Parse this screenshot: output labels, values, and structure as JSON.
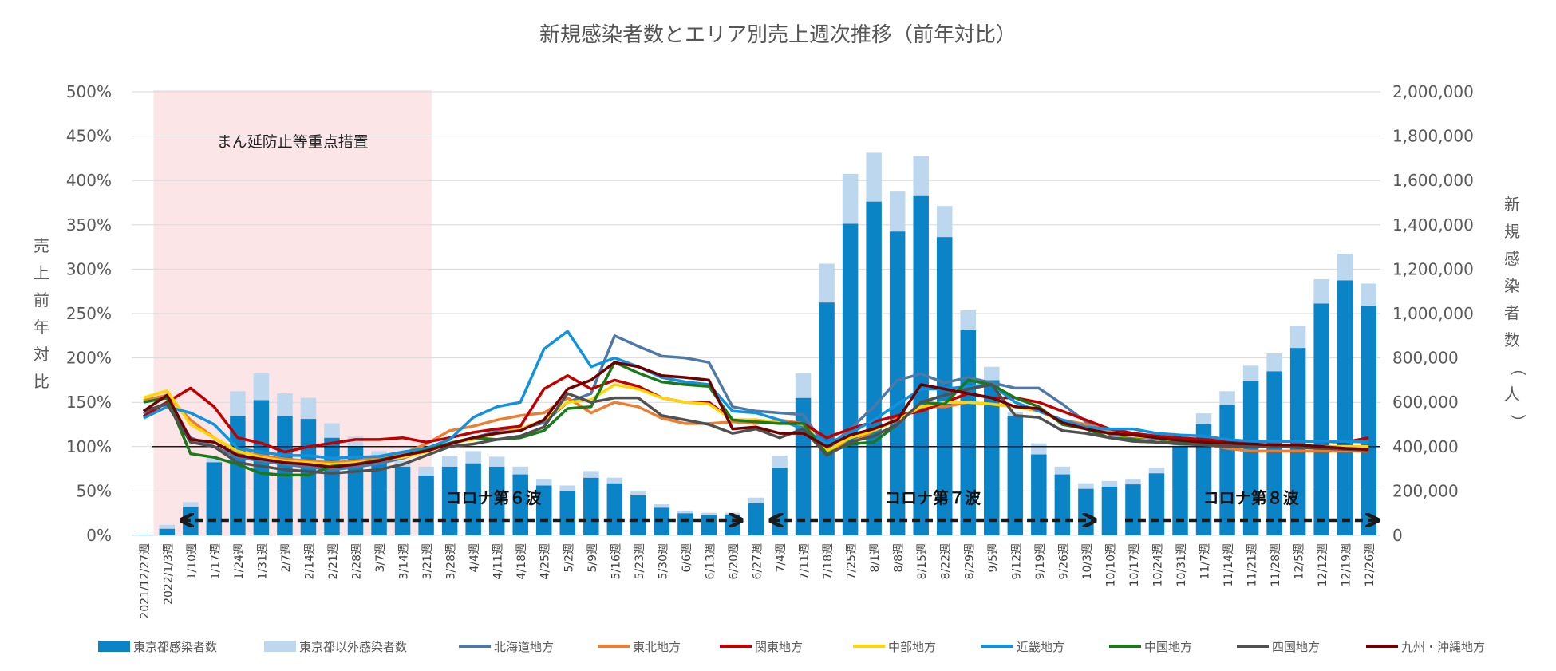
{
  "chart_data": {
    "type": "bar+line",
    "title": "新規感染者数とエリア別売上週次推移（前年対比）",
    "left_axis": {
      "label": "売上前年対比",
      "range": [
        0,
        500
      ],
      "ticks": [
        "0%",
        "50%",
        "100%",
        "150%",
        "200%",
        "250%",
        "300%",
        "350%",
        "400%",
        "450%",
        "500%"
      ]
    },
    "right_axis": {
      "label": "新規感染者数（人）",
      "range": [
        0,
        2000000
      ],
      "ticks": [
        "0",
        "200,000",
        "400,000",
        "600,000",
        "800,000",
        "1,000,000",
        "1,200,000",
        "1,400,000",
        "1,600,000",
        "1,800,000",
        "2,000,000"
      ]
    },
    "categories": [
      "2021/12/27週",
      "2022/1/3週",
      "1/10週",
      "1/17週",
      "1/24週",
      "1/31週",
      "2/7週",
      "2/14週",
      "2/21週",
      "2/28週",
      "3/7週",
      "3/14週",
      "3/21週",
      "3/28週",
      "4/4週",
      "4/11週",
      "4/18週",
      "4/25週",
      "5/2週",
      "5/9週",
      "5/16週",
      "5/23週",
      "5/30週",
      "6/6週",
      "6/13週",
      "6/20週",
      "6/27週",
      "7/4週",
      "7/11週",
      "7/18週",
      "7/25週",
      "8/1週",
      "8/8週",
      "8/15週",
      "8/22週",
      "8/29週",
      "9/5週",
      "9/12週",
      "9/19週",
      "9/26週",
      "10/3週",
      "10/10週",
      "10/17週",
      "10/24週",
      "10/31週",
      "11/7週",
      "11/14週",
      "11/21週",
      "11/28週",
      "12/5週",
      "12/12週",
      "12/19週",
      "12/26週"
    ],
    "bar_series": [
      {
        "name": "東京都感染者数",
        "color": "#0a84c7",
        "values": [
          2000,
          30000,
          130000,
          330000,
          540000,
          610000,
          540000,
          525000,
          440000,
          400000,
          350000,
          310000,
          270000,
          310000,
          325000,
          310000,
          275000,
          225000,
          200000,
          260000,
          235000,
          180000,
          125000,
          100000,
          90000,
          90000,
          145000,
          305000,
          620000,
          1050000,
          1405000,
          1505000,
          1370000,
          1530000,
          1345000,
          925000,
          700000,
          540000,
          365000,
          275000,
          210000,
          220000,
          230000,
          280000,
          400000,
          500000,
          590000,
          695000,
          740000,
          845000,
          1045000,
          1150000,
          1035000
        ]
      },
      {
        "name": "東京都以外感染者数",
        "color": "#bdd7ee",
        "values": [
          1000,
          18000,
          20000,
          20000,
          110000,
          120000,
          100000,
          95000,
          65000,
          45000,
          30000,
          25000,
          40000,
          50000,
          55000,
          45000,
          35000,
          30000,
          25000,
          30000,
          25000,
          20000,
          15000,
          12000,
          12000,
          12000,
          25000,
          55000,
          110000,
          175000,
          225000,
          220000,
          180000,
          180000,
          140000,
          90000,
          60000,
          15000,
          50000,
          35000,
          25000,
          25000,
          25000,
          25000,
          20000,
          50000,
          60000,
          70000,
          80000,
          100000,
          110000,
          120000,
          100000
        ]
      }
    ],
    "line_series": [
      {
        "name": "北海道地方",
        "color": "#4e79a7",
        "values": [
          137,
          150,
          110,
          100,
          88,
          84,
          80,
          77,
          74,
          77,
          81,
          87,
          96,
          104,
          110,
          117,
          120,
          127,
          150,
          160,
          225,
          213,
          202,
          200,
          195,
          145,
          140,
          138,
          136,
          98,
          120,
          145,
          175,
          182,
          172,
          178,
          172,
          166,
          166,
          148,
          128,
          114,
          111,
          109,
          105,
          103,
          100,
          100,
          100,
          100,
          99,
          99,
          99
        ]
      },
      {
        "name": "東北地方",
        "color": "#ed7d31",
        "values": [
          152,
          158,
          130,
          110,
          94,
          90,
          86,
          84,
          82,
          84,
          87,
          92,
          103,
          118,
          123,
          130,
          135,
          138,
          155,
          138,
          150,
          145,
          132,
          126,
          126,
          128,
          126,
          130,
          126,
          96,
          104,
          118,
          132,
          145,
          145,
          150,
          148,
          145,
          140,
          130,
          125,
          118,
          113,
          110,
          106,
          103,
          98,
          95,
          95,
          95,
          95,
          95,
          95
        ]
      },
      {
        "name": "関東地方",
        "color": "#c00000",
        "values": [
          134,
          150,
          166,
          145,
          110,
          104,
          94,
          100,
          104,
          108,
          108,
          110,
          105,
          110,
          116,
          120,
          123,
          165,
          180,
          165,
          175,
          168,
          155,
          150,
          150,
          130,
          130,
          127,
          126,
          110,
          120,
          128,
          135,
          140,
          150,
          160,
          155,
          155,
          150,
          140,
          130,
          120,
          115,
          112,
          110,
          108,
          107,
          106,
          106,
          106,
          106,
          105,
          110
        ]
      },
      {
        "name": "中部地方",
        "color": "#ffd600",
        "values": [
          155,
          163,
          125,
          110,
          95,
          88,
          84,
          82,
          80,
          82,
          85,
          88,
          94,
          104,
          108,
          115,
          120,
          130,
          150,
          153,
          170,
          165,
          155,
          150,
          148,
          130,
          130,
          127,
          125,
          95,
          110,
          118,
          130,
          145,
          150,
          150,
          148,
          145,
          140,
          128,
          120,
          115,
          112,
          110,
          106,
          104,
          102,
          100,
          100,
          100,
          100,
          100,
          100
        ]
      },
      {
        "name": "近畿地方",
        "color": "#0f92e0",
        "values": [
          132,
          145,
          138,
          125,
          98,
          94,
          90,
          90,
          87,
          88,
          89,
          94,
          98,
          108,
          133,
          145,
          150,
          210,
          230,
          190,
          200,
          190,
          178,
          173,
          170,
          140,
          138,
          130,
          120,
          103,
          115,
          130,
          148,
          165,
          165,
          168,
          170,
          150,
          140,
          130,
          122,
          120,
          120,
          115,
          113,
          112,
          108,
          106,
          106,
          106,
          106,
          106,
          105
        ]
      },
      {
        "name": "中国地方",
        "color": "#1a7a1a",
        "values": [
          150,
          155,
          92,
          88,
          80,
          70,
          68,
          68,
          78,
          80,
          85,
          90,
          96,
          104,
          110,
          108,
          110,
          118,
          143,
          145,
          195,
          183,
          173,
          170,
          168,
          130,
          128,
          126,
          126,
          92,
          103,
          105,
          125,
          150,
          148,
          175,
          170,
          155,
          145,
          125,
          120,
          110,
          108,
          105,
          105,
          103,
          102,
          100,
          100,
          100,
          100,
          98,
          96
        ]
      },
      {
        "name": "四国地方",
        "color": "#505050",
        "values": [
          140,
          148,
          105,
          100,
          82,
          78,
          74,
          72,
          70,
          72,
          74,
          80,
          90,
          100,
          103,
          108,
          112,
          122,
          160,
          150,
          155,
          155,
          135,
          130,
          125,
          115,
          120,
          110,
          120,
          90,
          105,
          112,
          125,
          150,
          158,
          165,
          170,
          135,
          133,
          118,
          115,
          110,
          106,
          105,
          103,
          102,
          100,
          100,
          100,
          99,
          98,
          97,
          96
        ]
      },
      {
        "name": "九州・沖縄地方",
        "color": "#700000",
        "values": [
          140,
          158,
          108,
          105,
          90,
          86,
          82,
          80,
          77,
          80,
          84,
          90,
          95,
          103,
          110,
          115,
          118,
          130,
          165,
          175,
          195,
          190,
          180,
          178,
          175,
          120,
          122,
          115,
          115,
          100,
          113,
          120,
          130,
          170,
          165,
          160,
          155,
          145,
          143,
          127,
          120,
          115,
          113,
          110,
          107,
          105,
          104,
          103,
          102,
          102,
          100,
          98,
          97
        ]
      }
    ],
    "shaded_period": {
      "label": "まん延防止等重点措置",
      "from": "2022/1/3週",
      "to": "3/21週"
    },
    "reference_line": 100,
    "wave_annotations": [
      {
        "label": "コロナ第６波",
        "from": "1/10週",
        "to": "6/20週"
      },
      {
        "label": "コロナ第７波",
        "from": "7/4週",
        "to": "10/3週"
      },
      {
        "label": "コロナ第８波",
        "from": "10/17週",
        "to": "12/26週"
      }
    ],
    "legend_position": "bottom"
  }
}
